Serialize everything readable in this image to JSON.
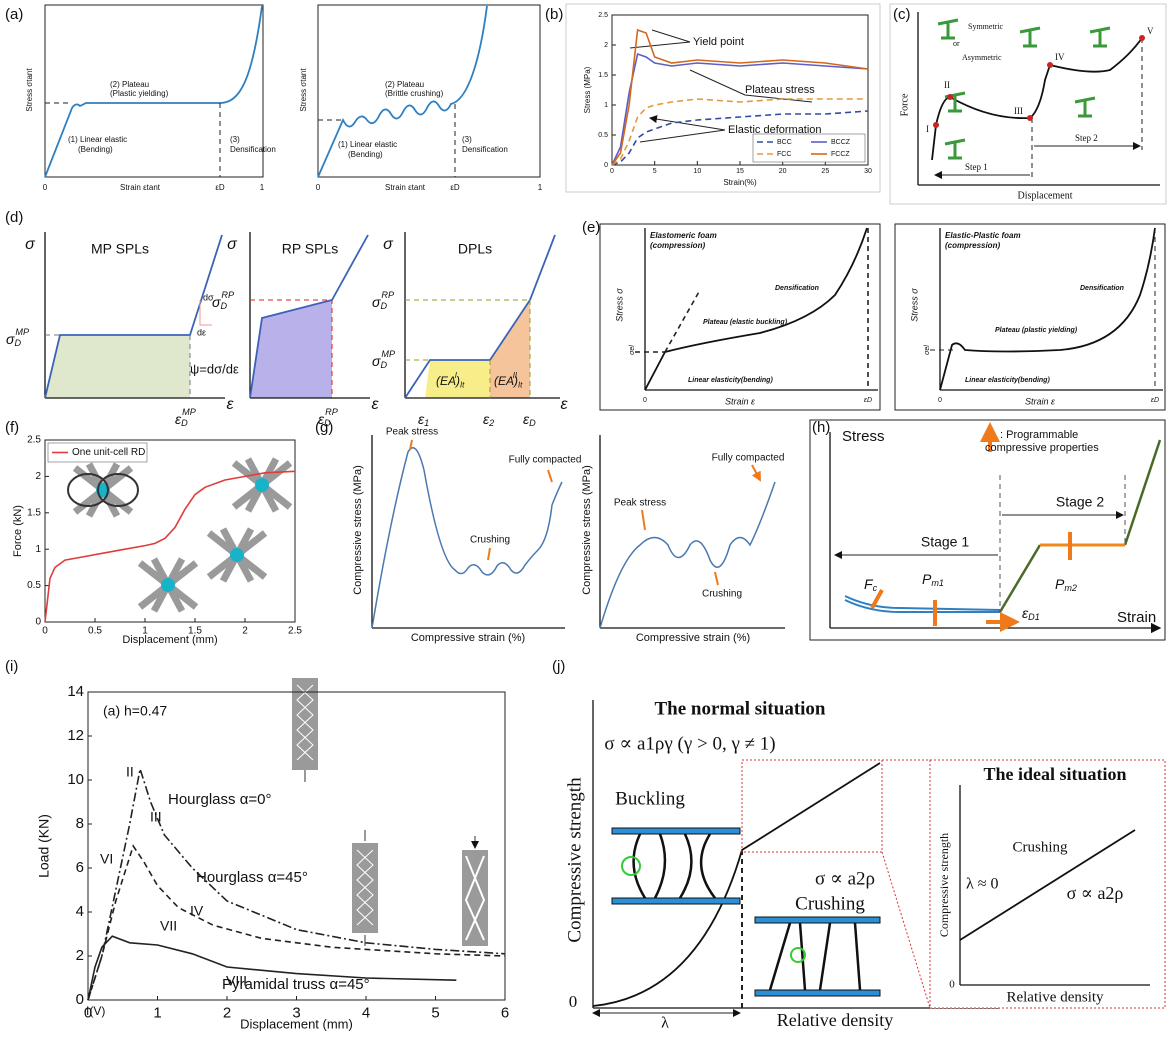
{
  "chart_data": [
    {
      "type": "schematic",
      "label": "(a)",
      "texts": [
        "Stress σtant",
        "(2) Plateau",
        "(Plastic yielding)",
        "(1) Linear elastic",
        "(Bending)",
        "(3)",
        "Densification",
        "Strain εtant",
        "εD",
        "0",
        "1",
        "Stress σtant",
        "(2) Plateau",
        "(Brittle crushing)",
        "(1) Linear elastic",
        "(Bending)",
        "(3)",
        "Densification",
        "Strain εtant",
        "εD",
        "0",
        "1"
      ]
    },
    {
      "type": "line",
      "label": "(b)",
      "x_label": "Strain(%)",
      "y_label": "Stress (MPa)",
      "xlim": [
        0,
        30
      ],
      "xticks": [
        0,
        5,
        10,
        15,
        20,
        25,
        30
      ],
      "ylim": [
        0,
        2.5
      ],
      "yticks": [
        0,
        0.5,
        1,
        1.5,
        2,
        2.5
      ],
      "legend": "lower right",
      "annotations": [
        "Yield point",
        "Plateau stress",
        "Elastic deformation"
      ],
      "series": [
        {
          "name": "BCC",
          "color": "#2f4ea0",
          "line_style": "dashed",
          "x": [
            0,
            1,
            2,
            3,
            4,
            5,
            7,
            10,
            15,
            20,
            25,
            30
          ],
          "values": [
            0,
            0.05,
            0.2,
            0.45,
            0.55,
            0.6,
            0.7,
            0.75,
            0.8,
            0.85,
            0.85,
            0.9
          ]
        },
        {
          "name": "BCCZ",
          "color": "#5b5fc7",
          "line_style": "solid",
          "x": [
            0,
            1,
            2,
            3,
            4,
            5,
            7,
            10,
            15,
            20,
            25,
            30
          ],
          "values": [
            0,
            0.3,
            1.2,
            1.85,
            1.8,
            1.7,
            1.65,
            1.7,
            1.65,
            1.7,
            1.65,
            1.6
          ]
        },
        {
          "name": "FCC",
          "color": "#e39a3b",
          "line_style": "dashed",
          "x": [
            0,
            1,
            2,
            3,
            4,
            5,
            7,
            10,
            15,
            20,
            25,
            30
          ],
          "values": [
            0,
            0.1,
            0.4,
            0.8,
            0.95,
            1.0,
            1.05,
            1.1,
            1.05,
            1.1,
            1.1,
            1.1
          ]
        },
        {
          "name": "FCCZ",
          "color": "#d2691e",
          "line_style": "solid",
          "x": [
            0,
            1,
            2,
            3,
            4,
            5,
            7,
            10,
            15,
            20,
            25,
            30
          ],
          "values": [
            0,
            0.2,
            1.0,
            2.25,
            2.2,
            1.8,
            1.7,
            1.75,
            1.7,
            1.75,
            1.7,
            1.6
          ]
        }
      ]
    },
    {
      "type": "schematic",
      "label": "(c)",
      "texts": [
        "Force",
        "Displacement",
        "Symmetric",
        "or",
        "Asymmetric",
        "I",
        "II",
        "III",
        "IV",
        "V",
        "Step 1",
        "Step 2"
      ]
    },
    {
      "type": "schematic",
      "label": "(d)",
      "titles": [
        "MP SPLs",
        "RP SPLs",
        "DPLs"
      ],
      "sigma": "σ",
      "epsilon": "ε",
      "texts": [
        "ψ=dσ/dε",
        "dσ",
        "dε"
      ],
      "symbols": [
        {
          "base": "σ",
          "sub": "D",
          "sup": "MP"
        },
        {
          "base": "ε",
          "sub": "D",
          "sup": "MP"
        },
        {
          "base": "σ",
          "sub": "D",
          "sup": "RP"
        },
        {
          "base": "ε",
          "sub": "D",
          "sup": "RP"
        },
        {
          "base": "σ",
          "sub": "D",
          "sup": "RP"
        },
        {
          "base": "σ",
          "sub": "D",
          "sup": "MP"
        },
        {
          "base": "ε",
          "sub": "1"
        },
        {
          "base": "ε",
          "sub": "2"
        },
        {
          "base": "ε",
          "sub": "D"
        },
        {
          "base": "(EA)",
          "sub": "It",
          "sup": "I"
        },
        {
          "base": "(EA)",
          "sub": "It",
          "sup": "II"
        }
      ]
    },
    {
      "type": "schematic",
      "label": "(e)",
      "texts": [
        "Elastomeric foam",
        "(compression)",
        "Densification",
        "Plateau (elastic buckling)",
        "Linear elasticity(bending)",
        "Stress   σ",
        "Strain   ε",
        "σel",
        "εD",
        "0",
        "Elastic-Plastic foam",
        "(compression)",
        "Densification",
        "Plateau (plastic yielding)",
        "Linear elasticity(bending)",
        "Stress   σ",
        "Strain   ε",
        "σel",
        "εD",
        "0"
      ]
    },
    {
      "type": "line",
      "label": "(f)",
      "x_label": "Displacement (mm)",
      "y_label": "Force (kN)",
      "xlim": [
        0,
        2.5
      ],
      "xticks": [
        0,
        0.5,
        1,
        1.5,
        2,
        2.5
      ],
      "ylim": [
        0,
        2.5
      ],
      "yticks": [
        0,
        0.5,
        1,
        1.5,
        2,
        2.5
      ],
      "legend": "upper left",
      "series": [
        {
          "name": "One unit-cell RD",
          "color": "#e03c3c",
          "line_style": "solid",
          "x": [
            0,
            0.05,
            0.1,
            0.2,
            0.4,
            0.6,
            0.8,
            1.0,
            1.1,
            1.2,
            1.3,
            1.4,
            1.5,
            1.6,
            1.8,
            2.0,
            2.2,
            2.5
          ],
          "values": [
            0,
            0.6,
            0.75,
            0.85,
            0.9,
            0.95,
            1.0,
            1.05,
            1.08,
            1.15,
            1.3,
            1.55,
            1.75,
            1.85,
            1.95,
            2.0,
            2.05,
            2.07
          ]
        }
      ]
    },
    {
      "type": "schematic",
      "label": "(g)",
      "texts": [
        "Peak stress",
        "Crushing",
        "Fully compacted",
        "Compressive stress (MPa)",
        "Compressive strain (%)",
        "Peak stress",
        "Crushing",
        "Fully compacted",
        "Compressive stress (MPa)",
        "Compressive strain (%)"
      ]
    },
    {
      "type": "schematic",
      "label": "(h)",
      "texts": [
        "Stress",
        "Strain",
        ": Programmable",
        "compressive properties",
        "Stage 1",
        "Stage 2"
      ],
      "symbols": [
        {
          "base": "F",
          "sub": "c"
        },
        {
          "base": "P",
          "sub": "m1"
        },
        {
          "base": "P",
          "sub": "m2"
        },
        {
          "base": "ε",
          "sub": "D1"
        }
      ]
    },
    {
      "type": "line",
      "label": "(i)",
      "x_label": "Displacement (mm)",
      "y_label": "Load (KN)",
      "xlim": [
        0,
        6
      ],
      "xticks": [
        0,
        1,
        2,
        3,
        4,
        5,
        6
      ],
      "ylim": [
        0,
        14
      ],
      "yticks": [
        0,
        2,
        4,
        6,
        8,
        10,
        12,
        14
      ],
      "annotations": [
        "(a) h=0.47",
        "II",
        "III",
        "IV",
        "VI",
        "VII",
        "VIII",
        "I(V)"
      ],
      "series": [
        {
          "name": "Hourglass α=0°",
          "color": "#222222",
          "line_style": "dashdot",
          "x": [
            0,
            0.2,
            0.4,
            0.6,
            0.75,
            0.9,
            1.1,
            1.5,
            2,
            3,
            4,
            5,
            6
          ],
          "values": [
            0,
            2,
            5,
            8,
            10.5,
            9,
            7.5,
            6,
            4.5,
            3.2,
            2.6,
            2.3,
            2.1
          ]
        },
        {
          "name": "Hourglass α=45°",
          "color": "#222222",
          "line_style": "dashed",
          "x": [
            0,
            0.2,
            0.4,
            0.65,
            0.8,
            1,
            1.3,
            1.8,
            2.5,
            3.5,
            5,
            6
          ],
          "values": [
            0,
            2,
            4.5,
            7,
            6.3,
            5.2,
            4.2,
            3.4,
            2.8,
            2.4,
            2.1,
            2.0
          ]
        },
        {
          "name": "Pyramidal truss α=45°",
          "color": "#222222",
          "line_style": "solid",
          "x": [
            0,
            0.1,
            0.2,
            0.35,
            0.6,
            1,
            1.5,
            2,
            3,
            4,
            5.3
          ],
          "values": [
            0,
            1.5,
            2.4,
            2.9,
            2.6,
            2.5,
            2.1,
            1.5,
            1.2,
            1.0,
            0.9
          ]
        }
      ]
    },
    {
      "type": "schematic",
      "label": "(j)",
      "texts": [
        "The normal situation",
        "σ ∝ a1ργ (γ > 0, γ ≠ 1)",
        "Buckling",
        "σ ∝ a2ρ",
        "Crushing",
        "Compressive strength",
        "Relative density",
        "0",
        "λ",
        "The ideal situation",
        "Crushing",
        "λ ≈ 0",
        "σ ∝ a2ρ",
        "Compressive strength",
        "Relative density",
        "0"
      ]
    }
  ]
}
